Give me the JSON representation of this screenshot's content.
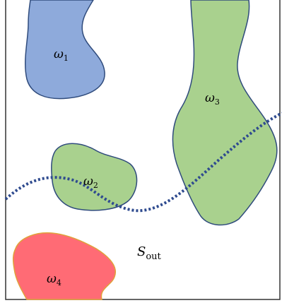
{
  "labels": {
    "omega1": {
      "base": "ω",
      "sub": "1"
    },
    "omega2": {
      "base": "ω",
      "sub": "2"
    },
    "omega3": {
      "base": "ω",
      "sub": "3"
    },
    "omega4": {
      "base": "ω",
      "sub": "4"
    },
    "s_out": {
      "base": "S",
      "sub": "out"
    }
  },
  "colors": {
    "blue_region": "#8eaadb",
    "green_region": "#a9d18e",
    "red_region": "#ff6b75",
    "region_stroke": "#2f4b7c",
    "red_stroke": "#e0a23a",
    "dotted_curve": "#2f4b8f",
    "frame": "#333333"
  }
}
